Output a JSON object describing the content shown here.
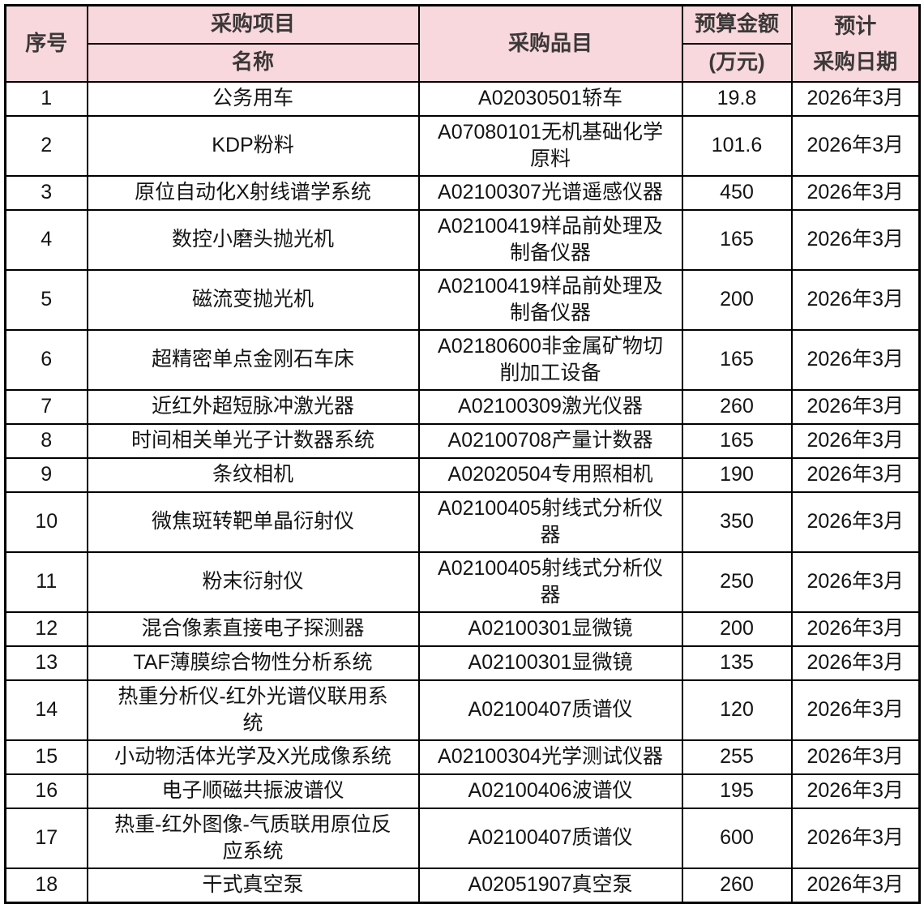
{
  "colors": {
    "header_bg": "#f8d8dc",
    "header_text": "#3b3838",
    "body_text": "#141414",
    "border": "#000000",
    "page_bg": "#ffffff"
  },
  "table": {
    "header": {
      "serial": "序号",
      "project_line1": "采购项目",
      "project_line2": "名称",
      "item": "采购品目",
      "budget_line1": "预算金额",
      "budget_line2": "(万元)",
      "date": "预计\n采购日期"
    },
    "rows": [
      {
        "no": "1",
        "name": "公务用车",
        "item": "A02030501轿车",
        "budget": "19.8",
        "date": "2026年3月"
      },
      {
        "no": "2",
        "name": "KDP粉料",
        "item": "A07080101无机基础化学\n原料",
        "budget": "101.6",
        "date": "2026年3月"
      },
      {
        "no": "3",
        "name": "原位自动化X射线谱学系统",
        "item": "A02100307光谱遥感仪器",
        "budget": "450",
        "date": "2026年3月"
      },
      {
        "no": "4",
        "name": "数控小磨头抛光机",
        "item": "A02100419样品前处理及\n制备仪器",
        "budget": "165",
        "date": "2026年3月"
      },
      {
        "no": "5",
        "name": "磁流变抛光机",
        "item": "A02100419样品前处理及\n制备仪器",
        "budget": "200",
        "date": "2026年3月"
      },
      {
        "no": "6",
        "name": "超精密单点金刚石车床",
        "item": "A02180600非金属矿物切\n削加工设备",
        "budget": "165",
        "date": "2026年3月"
      },
      {
        "no": "7",
        "name": "近红外超短脉冲激光器",
        "item": "A02100309激光仪器",
        "budget": "260",
        "date": "2026年3月"
      },
      {
        "no": "8",
        "name": "时间相关单光子计数器系统",
        "item": "A02100708产量计数器",
        "budget": "165",
        "date": "2026年3月"
      },
      {
        "no": "9",
        "name": "条纹相机",
        "item": "A02020504专用照相机",
        "budget": "190",
        "date": "2026年3月"
      },
      {
        "no": "10",
        "name": "微焦斑转靶单晶衍射仪",
        "item": "A02100405射线式分析仪\n器",
        "budget": "350",
        "date": "2026年3月"
      },
      {
        "no": "11",
        "name": "粉末衍射仪",
        "item": "A02100405射线式分析仪\n器",
        "budget": "250",
        "date": "2026年3月"
      },
      {
        "no": "12",
        "name": "混合像素直接电子探测器",
        "item": "A02100301显微镜",
        "budget": "200",
        "date": "2026年3月"
      },
      {
        "no": "13",
        "name": "TAF薄膜综合物性分析系统",
        "item": "A02100301显微镜",
        "budget": "135",
        "date": "2026年3月"
      },
      {
        "no": "14",
        "name": "热重分析仪-红外光谱仪联用系\n统",
        "item": "A02100407质谱仪",
        "budget": "120",
        "date": "2026年3月"
      },
      {
        "no": "15",
        "name": "小动物活体光学及X光成像系统",
        "item": "A02100304光学测试仪器",
        "budget": "255",
        "date": "2026年3月"
      },
      {
        "no": "16",
        "name": "电子顺磁共振波谱仪",
        "item": "A02100406波谱仪",
        "budget": "195",
        "date": "2026年3月"
      },
      {
        "no": "17",
        "name": "热重-红外图像-气质联用原位反\n应系统",
        "item": "A02100407质谱仪",
        "budget": "600",
        "date": "2026年3月"
      },
      {
        "no": "18",
        "name": "干式真空泵",
        "item": "A02051907真空泵",
        "budget": "260",
        "date": "2026年3月"
      }
    ]
  }
}
